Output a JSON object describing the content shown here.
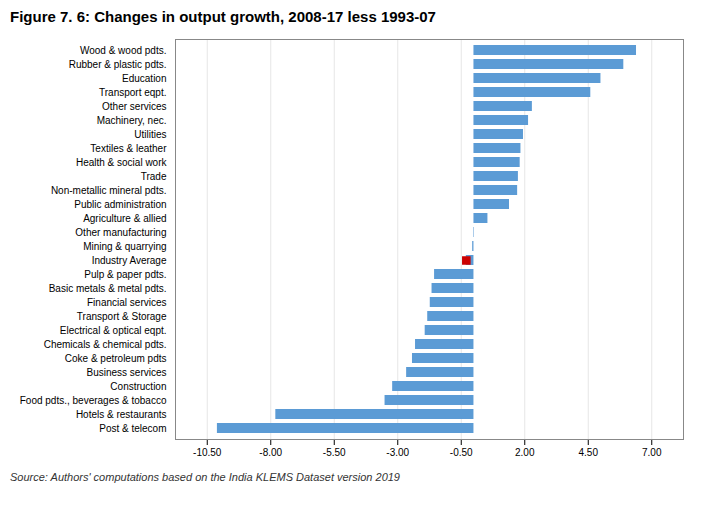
{
  "chart_data": {
    "type": "bar",
    "orientation": "horizontal",
    "title": "Figure 7. 6: Changes in output growth, 2008-17 less 1993-07",
    "annotations": [
      "Source: Authors' computations based on the India KLEMS Dataset version 2019"
    ],
    "categories": [
      "Wood & wood pdts.",
      "Rubber & plastic pdts.",
      "Education",
      "Transport eqpt.",
      "Other services",
      "Machinery, nec.",
      "Utilities",
      "Textiles & leather",
      "Health & social work",
      "Trade",
      "Non-metallic mineral pdts.",
      "Public administration",
      "Agriculture & allied",
      "Other manufacturing",
      "Mining & quarrying",
      "Industry Average",
      "Pulp & paper pdts.",
      "Basic metals & metal pdts.",
      "Financial services",
      "Transport & Storage",
      "Electrical & optical eqpt.",
      "Chemicals & chemical pdts.",
      "Coke & petroleum pdts",
      "Business services",
      "Construction",
      "Food pdts., beverages & tobacco",
      "Hotels & restaurants",
      "Post & telecom"
    ],
    "values": [
      6.4,
      5.9,
      5.0,
      4.6,
      2.3,
      2.15,
      1.95,
      1.85,
      1.82,
      1.75,
      1.72,
      1.4,
      0.55,
      0.02,
      -0.05,
      -0.3,
      -1.55,
      -1.65,
      -1.72,
      -1.82,
      -1.92,
      -2.3,
      -2.42,
      -2.65,
      -3.2,
      -3.5,
      -7.8,
      -10.1
    ],
    "color": "#5B9BD5",
    "markers": [
      {
        "category": "Industry Average",
        "value": -0.3,
        "color": "#CC0000",
        "marker": "square"
      }
    ],
    "xlim": [
      -11.75,
      8.25
    ],
    "xticks": [
      {
        "value": -10.5,
        "label": "-10.50"
      },
      {
        "value": -8,
        "label": "-8.00"
      },
      {
        "value": -5.5,
        "label": "-5.50"
      },
      {
        "value": -3,
        "label": "-3.00"
      },
      {
        "value": -0.5,
        "label": "-0.50"
      },
      {
        "value": 2,
        "label": "2.00"
      },
      {
        "value": 4.5,
        "label": "4.50"
      },
      {
        "value": 7,
        "label": "7.00"
      }
    ],
    "grid": true
  }
}
